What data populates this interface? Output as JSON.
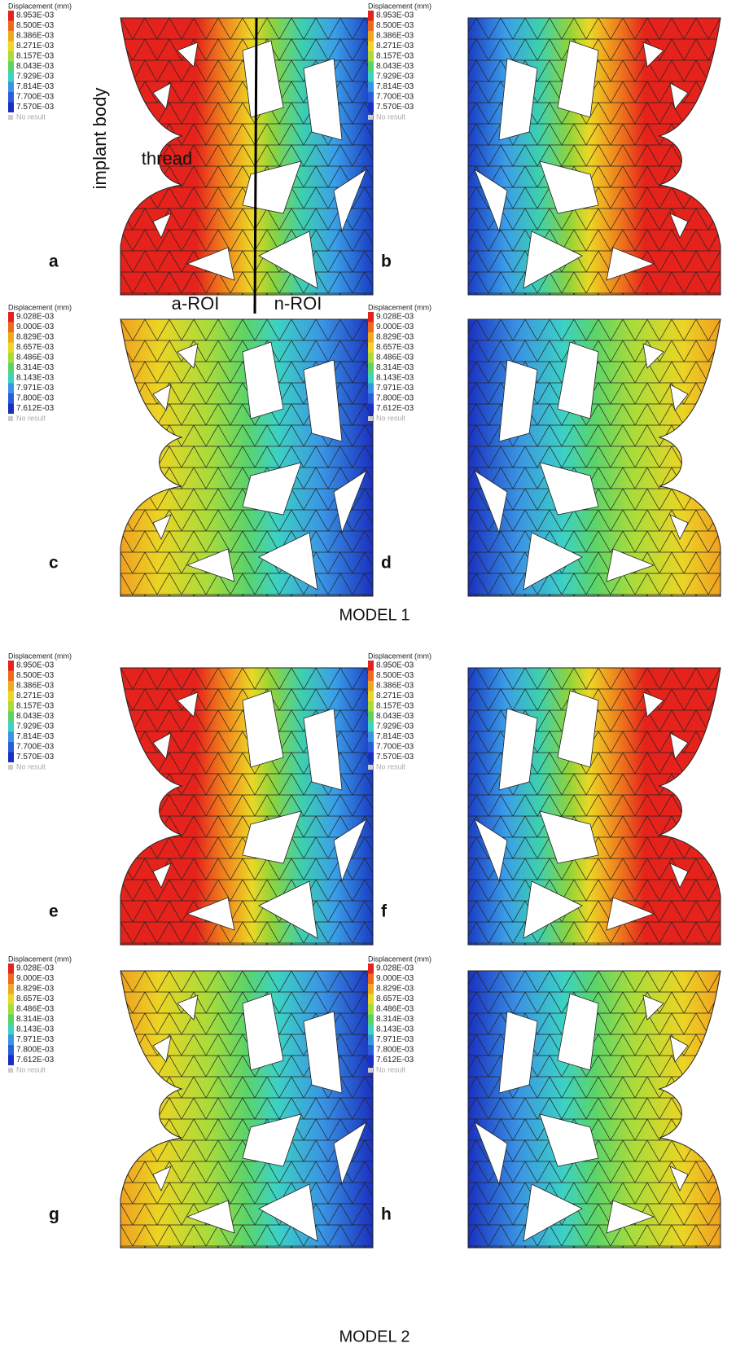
{
  "annotations": {
    "implant_body": "implant body",
    "thread": "thread",
    "a_roi": "a-ROI",
    "n_roi": "n-ROI"
  },
  "models": [
    "MODEL 1",
    "MODEL 2"
  ],
  "panels": [
    {
      "letter": "a",
      "legend": {
        "title": "Displacement (mm)",
        "values": [
          "8.953E-03",
          "8.500E-03",
          "8.386E-03",
          "8.271E-03",
          "8.157E-03",
          "8.043E-03",
          "7.929E-03",
          "7.814E-03",
          "7.700E-03",
          "7.570E-03"
        ],
        "no_result": "No result"
      }
    },
    {
      "letter": "b",
      "legend": {
        "title": "Displacement (mm)",
        "values": [
          "8.953E-03",
          "8.500E-03",
          "8.386E-03",
          "8.271E-03",
          "8.157E-03",
          "8.043E-03",
          "7.929E-03",
          "7.814E-03",
          "7.700E-03",
          "7.570E-03"
        ],
        "no_result": "No result"
      }
    },
    {
      "letter": "c",
      "legend": {
        "title": "Displacement (mm)",
        "values": [
          "9.028E-03",
          "9.000E-03",
          "8.829E-03",
          "8.657E-03",
          "8.486E-03",
          "8.314E-03",
          "8.143E-03",
          "7.971E-03",
          "7.800E-03",
          "7.612E-03"
        ],
        "no_result": "No result"
      }
    },
    {
      "letter": "d",
      "legend": {
        "title": "Displacement (mm)",
        "values": [
          "9.028E-03",
          "9.000E-03",
          "8.829E-03",
          "8.657E-03",
          "8.486E-03",
          "8.314E-03",
          "8.143E-03",
          "7.971E-03",
          "7.800E-03",
          "7.612E-03"
        ],
        "no_result": "No result"
      }
    },
    {
      "letter": "e",
      "legend": {
        "title": "Displacement (mm)",
        "values": [
          "8.950E-03",
          "8.500E-03",
          "8.386E-03",
          "8.271E-03",
          "8.157E-03",
          "8.043E-03",
          "7.929E-03",
          "7.814E-03",
          "7.700E-03",
          "7.570E-03"
        ],
        "no_result": "No result"
      }
    },
    {
      "letter": "f",
      "legend": {
        "title": "Displacement (mm)",
        "values": [
          "8.950E-03",
          "8.500E-03",
          "8.386E-03",
          "8.271E-03",
          "8.157E-03",
          "8.043E-03",
          "7.929E-03",
          "7.814E-03",
          "7.700E-03",
          "7.570E-03"
        ],
        "no_result": "No result"
      }
    },
    {
      "letter": "g",
      "legend": {
        "title": "Displacement (mm)",
        "values": [
          "9.028E-03",
          "9.000E-03",
          "8.829E-03",
          "8.657E-03",
          "8.486E-03",
          "8.314E-03",
          "8.143E-03",
          "7.971E-03",
          "7.800E-03",
          "7.612E-03"
        ],
        "no_result": "No result"
      }
    },
    {
      "letter": "h",
      "legend": {
        "title": "Displacement (mm)",
        "values": [
          "9.028E-03",
          "9.000E-03",
          "8.829E-03",
          "8.657E-03",
          "8.486E-03",
          "8.314E-03",
          "8.143E-03",
          "7.971E-03",
          "7.800E-03",
          "7.612E-03"
        ],
        "no_result": "No result"
      }
    }
  ]
}
